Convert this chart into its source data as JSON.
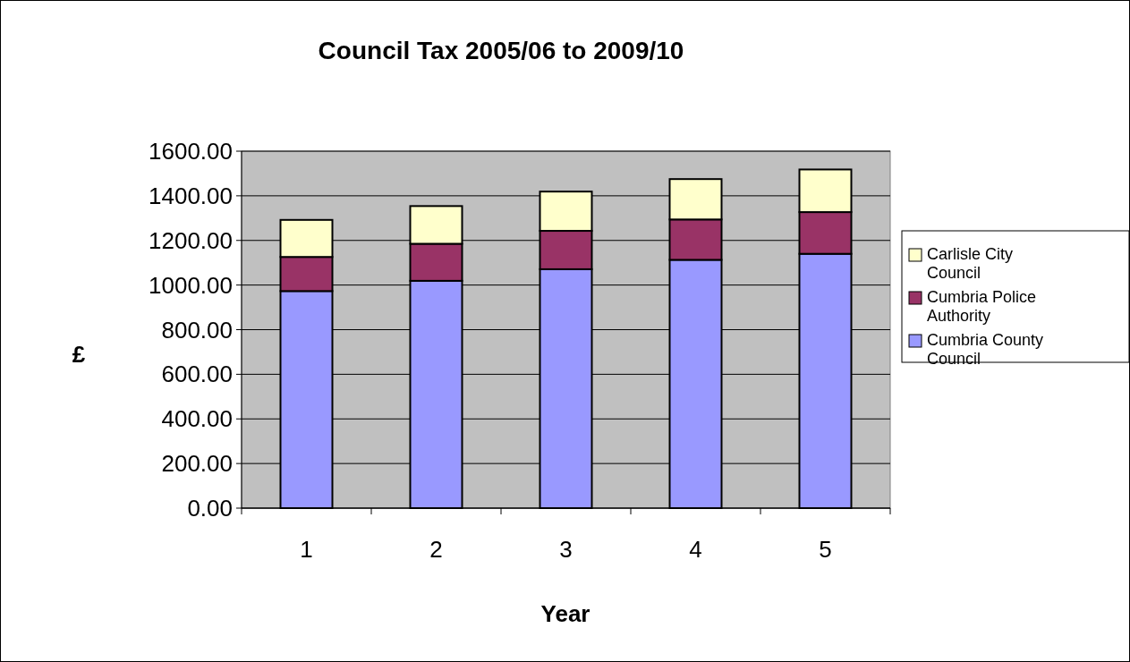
{
  "chart_data": {
    "type": "bar",
    "title": "Council Tax 2005/06 to 2009/10",
    "xlabel": "Year",
    "ylabel": "£",
    "categories": [
      "1",
      "2",
      "3",
      "4",
      "5"
    ],
    "stacked": true,
    "series": [
      {
        "name": "Cumbria County Council",
        "color": "#9999ff",
        "values": [
          973,
          1019,
          1071,
          1113,
          1140
        ]
      },
      {
        "name": "Cumbria Police Authority",
        "color": "#993366",
        "values": [
          153,
          166,
          172,
          181,
          187
        ]
      },
      {
        "name": "Carlisle City Council",
        "color": "#ffffcc",
        "values": [
          166,
          169,
          176,
          181,
          191
        ]
      }
    ],
    "ylim": [
      0,
      1600
    ],
    "yticks": [
      {
        "value": 0,
        "label": "0.00"
      },
      {
        "value": 200,
        "label": "200.00"
      },
      {
        "value": 400,
        "label": "400.00"
      },
      {
        "value": 600,
        "label": "600.00"
      },
      {
        "value": 800,
        "label": "800.00"
      },
      {
        "value": 1000,
        "label": "1000.00"
      },
      {
        "value": 1200,
        "label": "1200.00"
      },
      {
        "value": 1400,
        "label": "1400.00"
      },
      {
        "value": 1600,
        "label": "1600.00"
      }
    ],
    "grid": "y",
    "legend": "right"
  }
}
